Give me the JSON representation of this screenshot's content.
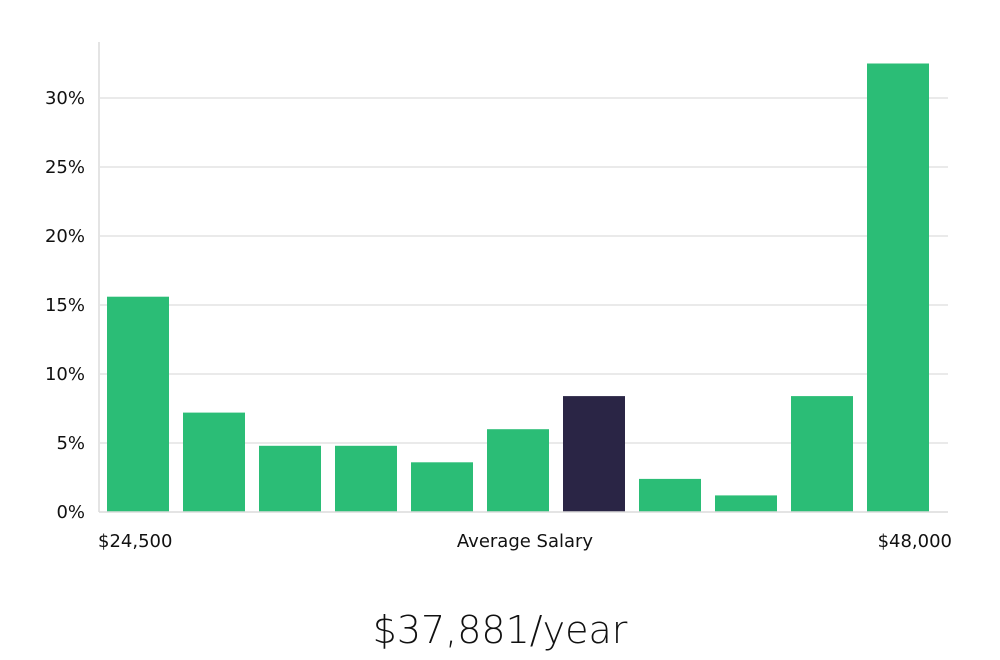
{
  "chart_data": {
    "type": "bar",
    "title": "",
    "xlabel": "Average Salary",
    "ylabel": "",
    "x_range_labels": {
      "min": "$24,500",
      "max": "$48,000"
    },
    "y_ticks": [
      "0%",
      "5%",
      "10%",
      "15%",
      "20%",
      "25%",
      "30%"
    ],
    "ylim": [
      0,
      34
    ],
    "grid": true,
    "legend": "none",
    "values": [
      15.6,
      7.2,
      4.8,
      4.8,
      3.6,
      6.0,
      8.4,
      2.4,
      1.2,
      8.4,
      32.5
    ],
    "highlight_index": 6,
    "colors": {
      "bar": "#2bbd76",
      "highlight": "#2a2545",
      "grid": "#e3e3e3",
      "axis": "#dcdcdc"
    }
  },
  "summary": {
    "average_salary": "$37,881/year"
  }
}
